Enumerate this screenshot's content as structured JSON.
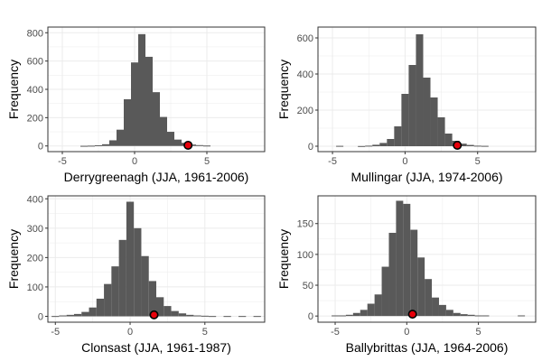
{
  "colors": {
    "bar": "#595959",
    "grid": "#ebebeb",
    "panel_border": "#333333",
    "marker_fill": "#e8000b",
    "marker_stroke": "#000000"
  },
  "chart_data": [
    {
      "type": "bar",
      "subtype": "histogram",
      "title": "",
      "xlabel": "Derrygreenagh (JJA, 1961-2006)",
      "ylabel": "Frequency",
      "xlim": [
        -6.0,
        9.0
      ],
      "ylim": [
        -40,
        840
      ],
      "xticks": [
        -5,
        0,
        5
      ],
      "yticks": [
        0,
        200,
        400,
        600,
        800
      ],
      "bin_width": 0.5,
      "bins": [
        {
          "x": -3.5,
          "count": 1
        },
        {
          "x": -3.0,
          "count": 2
        },
        {
          "x": -2.5,
          "count": 5
        },
        {
          "x": -2.0,
          "count": 12
        },
        {
          "x": -1.5,
          "count": 40
        },
        {
          "x": -1.0,
          "count": 115
        },
        {
          "x": -0.5,
          "count": 330
        },
        {
          "x": 0.0,
          "count": 590
        },
        {
          "x": 0.5,
          "count": 790
        },
        {
          "x": 1.0,
          "count": 630
        },
        {
          "x": 1.5,
          "count": 380
        },
        {
          "x": 2.0,
          "count": 205
        },
        {
          "x": 2.5,
          "count": 100
        },
        {
          "x": 3.0,
          "count": 45
        },
        {
          "x": 3.5,
          "count": 22
        },
        {
          "x": 4.0,
          "count": 10
        },
        {
          "x": 4.5,
          "count": 6
        },
        {
          "x": 5.0,
          "count": 3
        }
      ],
      "observed": {
        "x": 3.7,
        "y": 5
      }
    },
    {
      "type": "bar",
      "subtype": "histogram",
      "title": "",
      "xlabel": "Mullingar (JJA, 1974-2006)",
      "ylabel": "Frequency",
      "xlim": [
        -6.0,
        9.0
      ],
      "ylim": [
        -30,
        660
      ],
      "xticks": [
        -5,
        0,
        5
      ],
      "yticks": [
        0,
        200,
        400,
        600
      ],
      "bin_width": 0.5,
      "bins": [
        {
          "x": -4.5,
          "count": 2
        },
        {
          "x": -3.0,
          "count": 1
        },
        {
          "x": -2.5,
          "count": 3
        },
        {
          "x": -2.0,
          "count": 8
        },
        {
          "x": -1.5,
          "count": 18
        },
        {
          "x": -1.0,
          "count": 40
        },
        {
          "x": -0.5,
          "count": 110
        },
        {
          "x": 0.0,
          "count": 290
        },
        {
          "x": 0.5,
          "count": 450
        },
        {
          "x": 1.0,
          "count": 620
        },
        {
          "x": 1.5,
          "count": 380
        },
        {
          "x": 2.0,
          "count": 270
        },
        {
          "x": 2.5,
          "count": 160
        },
        {
          "x": 3.0,
          "count": 70
        },
        {
          "x": 3.5,
          "count": 30
        },
        {
          "x": 4.0,
          "count": 14
        },
        {
          "x": 4.5,
          "count": 7
        },
        {
          "x": 5.0,
          "count": 3
        },
        {
          "x": 5.5,
          "count": 2
        }
      ],
      "observed": {
        "x": 3.6,
        "y": 5
      }
    },
    {
      "type": "bar",
      "subtype": "histogram",
      "title": "",
      "xlabel": "Clonsast (JJA, 1961-1987)",
      "ylabel": "Frequency",
      "xlim": [
        -5.5,
        9.0
      ],
      "ylim": [
        -20,
        410
      ],
      "xticks": [
        -5,
        0,
        5
      ],
      "yticks": [
        0,
        100,
        200,
        300,
        400
      ],
      "bin_width": 0.5,
      "bins": [
        {
          "x": -5.0,
          "count": 1
        },
        {
          "x": -4.5,
          "count": 3
        },
        {
          "x": -4.0,
          "count": 5
        },
        {
          "x": -3.5,
          "count": 8
        },
        {
          "x": -3.0,
          "count": 15
        },
        {
          "x": -2.5,
          "count": 30
        },
        {
          "x": -2.0,
          "count": 60
        },
        {
          "x": -1.5,
          "count": 110
        },
        {
          "x": -1.0,
          "count": 170
        },
        {
          "x": -0.5,
          "count": 260
        },
        {
          "x": 0.0,
          "count": 390
        },
        {
          "x": 0.5,
          "count": 300
        },
        {
          "x": 1.0,
          "count": 205
        },
        {
          "x": 1.5,
          "count": 120
        },
        {
          "x": 2.0,
          "count": 65
        },
        {
          "x": 2.5,
          "count": 35
        },
        {
          "x": 3.0,
          "count": 18
        },
        {
          "x": 3.5,
          "count": 10
        },
        {
          "x": 4.0,
          "count": 5
        },
        {
          "x": 4.5,
          "count": 3
        },
        {
          "x": 5.0,
          "count": 2
        },
        {
          "x": 5.5,
          "count": 1
        },
        {
          "x": 6.5,
          "count": 1
        },
        {
          "x": 7.5,
          "count": 1
        },
        {
          "x": 8.5,
          "count": 1
        }
      ],
      "observed": {
        "x": 1.6,
        "y": 5
      }
    },
    {
      "type": "bar",
      "subtype": "histogram",
      "title": "",
      "xlabel": "Ballybrittas (JJA, 1964-2006)",
      "ylabel": "Frequency",
      "xlim": [
        -6.2,
        9.0
      ],
      "ylim": [
        -10,
        195
      ],
      "xticks": [
        -5,
        0,
        5
      ],
      "yticks": [
        0,
        50,
        100,
        150
      ],
      "bin_width": 0.5,
      "bins": [
        {
          "x": -5.0,
          "count": 1
        },
        {
          "x": -4.5,
          "count": 1
        },
        {
          "x": -4.0,
          "count": 2
        },
        {
          "x": -3.5,
          "count": 5
        },
        {
          "x": -3.0,
          "count": 10
        },
        {
          "x": -2.5,
          "count": 20
        },
        {
          "x": -2.0,
          "count": 35
        },
        {
          "x": -1.5,
          "count": 80
        },
        {
          "x": -1.0,
          "count": 135
        },
        {
          "x": -0.5,
          "count": 187
        },
        {
          "x": 0.0,
          "count": 182
        },
        {
          "x": 0.5,
          "count": 140
        },
        {
          "x": 1.0,
          "count": 95
        },
        {
          "x": 1.5,
          "count": 60
        },
        {
          "x": 2.0,
          "count": 30
        },
        {
          "x": 2.5,
          "count": 18
        },
        {
          "x": 3.0,
          "count": 10
        },
        {
          "x": 3.5,
          "count": 5
        },
        {
          "x": 4.0,
          "count": 3
        },
        {
          "x": 4.5,
          "count": 2
        },
        {
          "x": 5.0,
          "count": 1
        },
        {
          "x": 5.5,
          "count": 1
        },
        {
          "x": 8.0,
          "count": 1
        }
      ],
      "observed": {
        "x": 0.4,
        "y": 3
      }
    }
  ]
}
